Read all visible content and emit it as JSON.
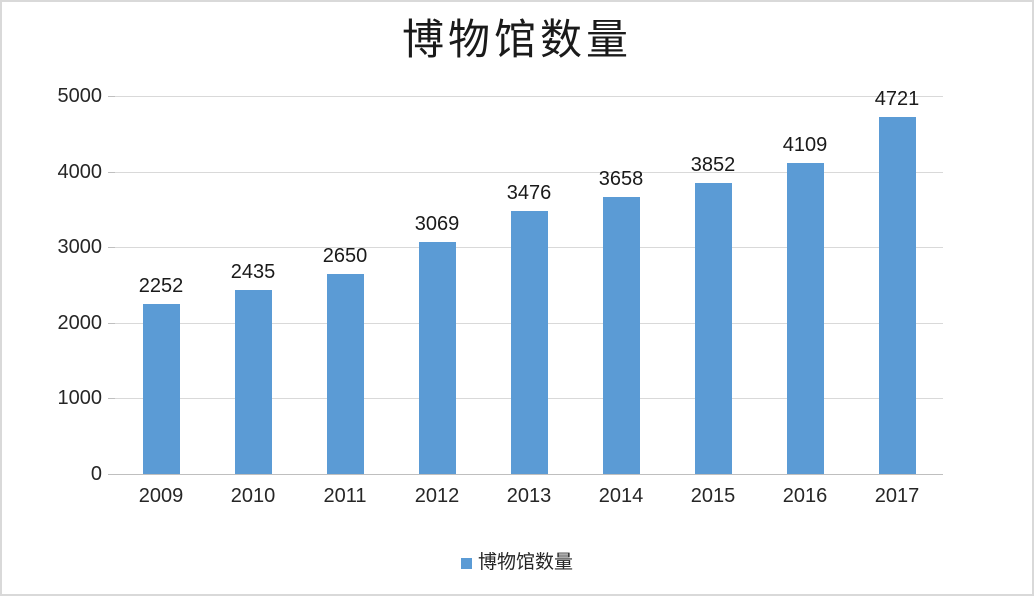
{
  "colors": {
    "bar": "#5B9BD5",
    "gridline": "#D9D9D9",
    "axis_line": "#BFBFBF",
    "text": "#262626",
    "title_text": "#1A1A1A",
    "border": "#D9D9D9",
    "background": "#FFFFFF"
  },
  "chart_data": {
    "type": "bar",
    "title": "博物馆数量",
    "categories": [
      "2009",
      "2010",
      "2011",
      "2012",
      "2013",
      "2014",
      "2015",
      "2016",
      "2017"
    ],
    "series": [
      {
        "name": "博物馆数量",
        "values": [
          2252,
          2435,
          2650,
          3069,
          3476,
          3658,
          3852,
          4109,
          4721
        ]
      }
    ],
    "data_labels": [
      2252,
      2435,
      2650,
      3069,
      3476,
      3658,
      3852,
      4109,
      4721
    ],
    "legend_label": "博物馆数量",
    "legend_position": "bottom",
    "xlabel": "",
    "ylabel": "",
    "ylim": [
      0,
      5000
    ],
    "yticks": [
      0,
      1000,
      2000,
      3000,
      4000,
      5000
    ],
    "grid": true,
    "bar_color": "#5B9BD5"
  }
}
